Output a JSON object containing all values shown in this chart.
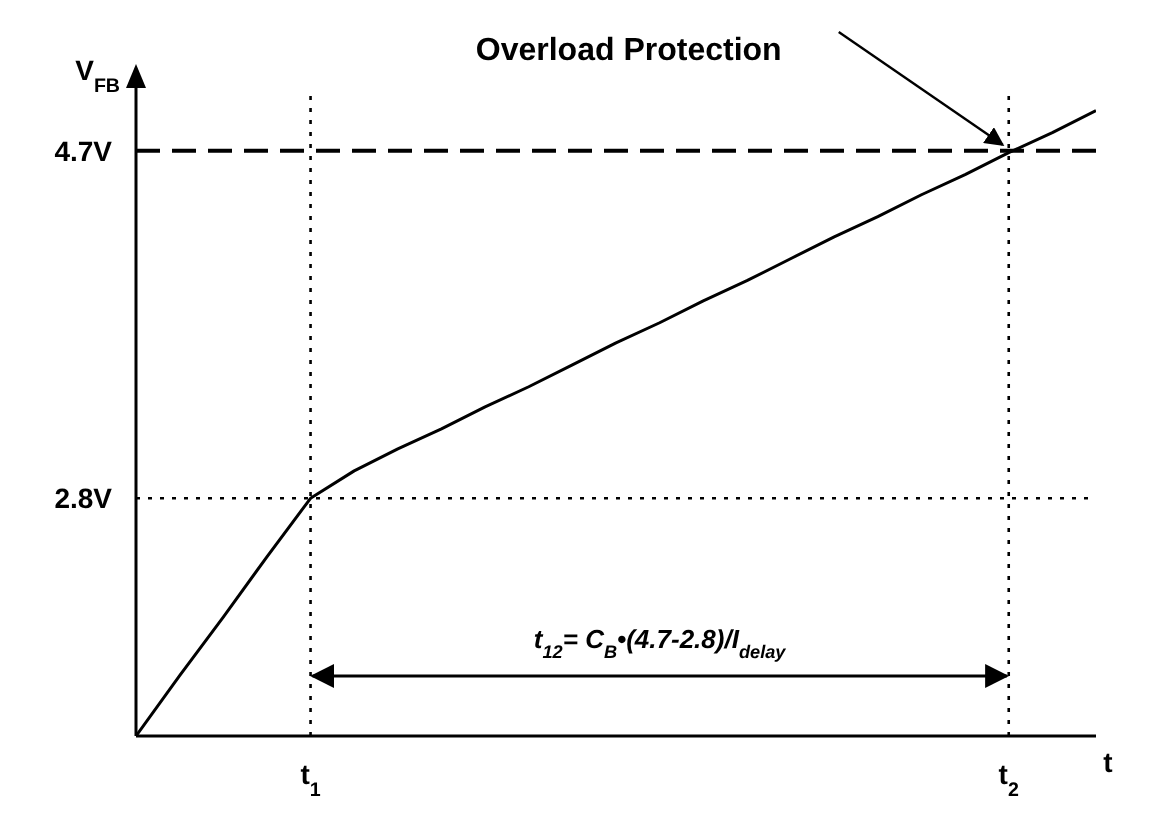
{
  "chart_data": {
    "type": "line",
    "xlabel": "t",
    "ylabel": "V$_{FB}$",
    "ylim": [
      1.5,
      5.0
    ],
    "yticks": [
      {
        "value": 2.8,
        "label": "2.8V"
      },
      {
        "value": 4.7,
        "label": "4.7V"
      }
    ],
    "categories": [
      null,
      null,
      null,
      null,
      "t$_{1}$",
      null,
      null,
      null,
      null,
      null,
      null,
      null,
      null,
      null,
      null,
      null,
      null,
      null,
      null,
      null,
      "t$_{2}$",
      null,
      null
    ],
    "series": [
      {
        "color": "#000000",
        "values": [
          1.5,
          1.83,
          2.15,
          2.48,
          2.8,
          2.95,
          3.07,
          3.18,
          3.3,
          3.41,
          3.53,
          3.65,
          3.76,
          3.88,
          3.99,
          4.11,
          4.23,
          4.34,
          4.46,
          4.57,
          4.69,
          4.8,
          4.92
        ]
      }
    ],
    "ref_lines": [
      {
        "axis": "y",
        "value": 4.7,
        "line_style": "dashed",
        "color": "#000000"
      },
      {
        "axis": "y",
        "value": 2.8,
        "line_style": "dotted",
        "color": "#000000"
      },
      {
        "axis": "x",
        "value": "t$_{1}$",
        "line_style": "dotted",
        "color": "#000000"
      },
      {
        "axis": "x",
        "value": "t$_{2}$",
        "line_style": "dotted",
        "color": "#000000"
      }
    ],
    "annotations": [
      "Overload Protection",
      "t$_{12}$= C$_{B}$•(4.7-2.8)/I$_{delay}$"
    ],
    "grid": false,
    "marker": "none",
    "line_style": "solid"
  }
}
